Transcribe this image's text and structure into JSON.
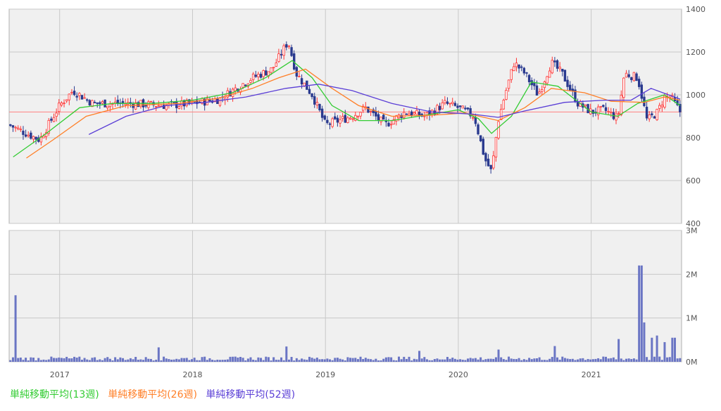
{
  "chart_data": [
    {
      "type": "candlestick",
      "title": "",
      "xlabel": "",
      "ylabel": "",
      "ylim": [
        400,
        1400
      ],
      "yticks": [
        "1400",
        "1200",
        "1000",
        "800",
        "600",
        "400"
      ],
      "grid": true,
      "reference_line": 920,
      "series": [
        {
          "name": "単純移動平均(13週)",
          "color": "#33cc33",
          "points": [
            [
              2016.65,
              710
            ],
            [
              2016.9,
              820
            ],
            [
              2017.15,
              940
            ],
            [
              2017.4,
              960
            ],
            [
              2017.7,
              960
            ],
            [
              2018.0,
              975
            ],
            [
              2018.3,
              1010
            ],
            [
              2018.55,
              1080
            ],
            [
              2018.75,
              1160
            ],
            [
              2018.9,
              1080
            ],
            [
              2019.05,
              950
            ],
            [
              2019.25,
              880
            ],
            [
              2019.5,
              880
            ],
            [
              2019.75,
              905
            ],
            [
              2020.0,
              930
            ],
            [
              2020.15,
              890
            ],
            [
              2020.25,
              820
            ],
            [
              2020.4,
              900
            ],
            [
              2020.55,
              1060
            ],
            [
              2020.75,
              1040
            ],
            [
              2021.0,
              920
            ],
            [
              2021.2,
              900
            ],
            [
              2021.35,
              960
            ],
            [
              2021.55,
              1000
            ],
            [
              2021.67,
              950
            ]
          ]
        },
        {
          "name": "単純移動平均(26週)",
          "color": "#ff7f27",
          "points": [
            [
              2016.75,
              705
            ],
            [
              2016.95,
              790
            ],
            [
              2017.2,
              900
            ],
            [
              2017.5,
              950
            ],
            [
              2017.9,
              960
            ],
            [
              2018.2,
              985
            ],
            [
              2018.45,
              1030
            ],
            [
              2018.65,
              1080
            ],
            [
              2018.85,
              1120
            ],
            [
              2019.05,
              1030
            ],
            [
              2019.25,
              950
            ],
            [
              2019.5,
              900
            ],
            [
              2019.8,
              905
            ],
            [
              2020.05,
              915
            ],
            [
              2020.3,
              880
            ],
            [
              2020.5,
              940
            ],
            [
              2020.7,
              1030
            ],
            [
              2020.95,
              1010
            ],
            [
              2021.15,
              970
            ],
            [
              2021.4,
              965
            ],
            [
              2021.55,
              990
            ],
            [
              2021.67,
              975
            ]
          ]
        },
        {
          "name": "単純移動平均(52週)",
          "color": "#5a3ed6",
          "points": [
            [
              2017.22,
              815
            ],
            [
              2017.5,
              900
            ],
            [
              2017.8,
              950
            ],
            [
              2018.1,
              965
            ],
            [
              2018.4,
              990
            ],
            [
              2018.7,
              1030
            ],
            [
              2018.95,
              1050
            ],
            [
              2019.2,
              1020
            ],
            [
              2019.5,
              960
            ],
            [
              2019.8,
              920
            ],
            [
              2020.1,
              910
            ],
            [
              2020.3,
              895
            ],
            [
              2020.5,
              925
            ],
            [
              2020.8,
              965
            ],
            [
              2021.1,
              975
            ],
            [
              2021.3,
              975
            ],
            [
              2021.45,
              1030
            ],
            [
              2021.67,
              980
            ]
          ]
        }
      ],
      "anchors": [
        [
          2016.62,
          860
        ],
        [
          2016.75,
          820
        ],
        [
          2016.85,
          790
        ],
        [
          2017.0,
          950
        ],
        [
          2017.1,
          1020
        ],
        [
          2017.25,
          960
        ],
        [
          2017.5,
          960
        ],
        [
          2017.8,
          950
        ],
        [
          2018.0,
          960
        ],
        [
          2018.2,
          980
        ],
        [
          2018.3,
          1020
        ],
        [
          2018.45,
          1080
        ],
        [
          2018.6,
          1120
        ],
        [
          2018.72,
          1250
        ],
        [
          2018.78,
          1100
        ],
        [
          2018.9,
          1000
        ],
        [
          2019.0,
          860
        ],
        [
          2019.1,
          880
        ],
        [
          2019.2,
          900
        ],
        [
          2019.3,
          940
        ],
        [
          2019.45,
          860
        ],
        [
          2019.6,
          920
        ],
        [
          2019.75,
          900
        ],
        [
          2019.9,
          960
        ],
        [
          2020.0,
          940
        ],
        [
          2020.12,
          900
        ],
        [
          2020.2,
          700
        ],
        [
          2020.25,
          640
        ],
        [
          2020.3,
          880
        ],
        [
          2020.35,
          1000
        ],
        [
          2020.42,
          1150
        ],
        [
          2020.5,
          1100
        ],
        [
          2020.6,
          1000
        ],
        [
          2020.7,
          1150
        ],
        [
          2020.78,
          1100
        ],
        [
          2020.9,
          960
        ],
        [
          2021.0,
          920
        ],
        [
          2021.1,
          930
        ],
        [
          2021.2,
          890
        ],
        [
          2021.25,
          1100
        ],
        [
          2021.35,
          1080
        ],
        [
          2021.42,
          880
        ],
        [
          2021.5,
          920
        ],
        [
          2021.55,
          990
        ],
        [
          2021.6,
          990
        ],
        [
          2021.67,
          920
        ]
      ]
    },
    {
      "type": "bar",
      "title": "",
      "xlabel": "",
      "ylabel": "",
      "ylim": [
        0,
        3
      ],
      "yticks": [
        "3M",
        "2M",
        "1M",
        "0M"
      ],
      "grid": true,
      "color": "#6a75c4",
      "spikes": [
        [
          2016.67,
          1.52
        ],
        [
          2017.75,
          0.33
        ],
        [
          2018.7,
          0.35
        ],
        [
          2019.7,
          0.25
        ],
        [
          2020.3,
          0.28
        ],
        [
          2020.72,
          0.36
        ],
        [
          2021.2,
          0.52
        ],
        [
          2021.37,
          2.2
        ],
        [
          2021.39,
          0.85
        ],
        [
          2021.4,
          0.9
        ],
        [
          2021.45,
          0.55
        ],
        [
          2021.5,
          0.6
        ],
        [
          2021.55,
          0.45
        ],
        [
          2021.62,
          0.55
        ]
      ]
    }
  ],
  "x_axis": {
    "min": 2016.62,
    "max": 2021.68,
    "labels": [
      "2017",
      "2018",
      "2019",
      "2020",
      "2021"
    ]
  },
  "legend": {
    "placement": "bottom-left",
    "items": [
      {
        "label": "単純移動平均(13週)",
        "color": "#33cc33"
      },
      {
        "label": "単純移動平均(26週)",
        "color": "#ff7f27"
      },
      {
        "label": "単純移動平均(52週)",
        "color": "#5a3ed6"
      }
    ]
  },
  "colors": {
    "up": "#ff3333",
    "down": "#2a3a8f",
    "reference": "#ff8080",
    "grid": "#c8c8c8",
    "plot_bg": "#f0f0f0",
    "volume": "#6a75c4"
  }
}
